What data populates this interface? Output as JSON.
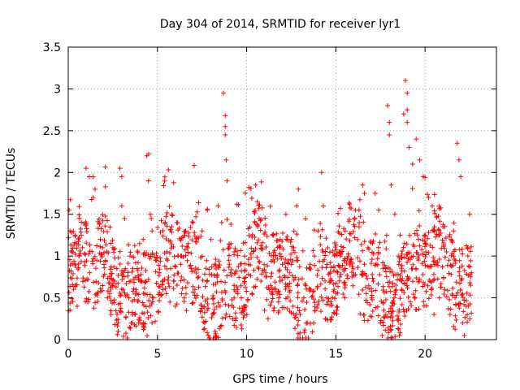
{
  "chart_data": {
    "type": "scatter",
    "title": "Day 304 of 2014, SRMTID for receiver lyr1",
    "xlabel": "GPS time / hours",
    "ylabel": "SRMTID / TECUs",
    "xlim": [
      0,
      24
    ],
    "ylim": [
      0,
      3.5
    ],
    "xticks": [
      "0",
      "5",
      "10",
      "15",
      "20"
    ],
    "yticks": [
      "0",
      "0.5",
      "1",
      "1.5",
      "2",
      "2.5",
      "3",
      "3.5"
    ],
    "grid": true,
    "marker": "+",
    "series_color": "#ff0000",
    "series": [
      {
        "name": "lyr1",
        "points": [
          [
            0.05,
            1.55
          ],
          [
            0.1,
            1.3
          ],
          [
            0.2,
            1.05
          ],
          [
            0.3,
            0.6
          ],
          [
            0.5,
            0.4
          ],
          [
            0.6,
            1.0
          ],
          [
            0.8,
            1.1
          ],
          [
            1.0,
            2.05
          ],
          [
            1.1,
            0.45
          ],
          [
            1.2,
            0.8
          ],
          [
            1.4,
            1.7
          ],
          [
            1.5,
            1.8
          ],
          [
            1.6,
            0.95
          ],
          [
            1.8,
            1.2
          ],
          [
            2.0,
            0.9
          ],
          [
            2.2,
            0.5
          ],
          [
            2.4,
            0.3
          ],
          [
            2.6,
            0.7
          ],
          [
            2.9,
            2.05
          ],
          [
            3.0,
            1.95
          ],
          [
            3.0,
            1.6
          ],
          [
            3.2,
            0.85
          ],
          [
            3.4,
            0.5
          ],
          [
            3.6,
            0.3
          ],
          [
            3.8,
            0.6
          ],
          [
            4.0,
            1.15
          ],
          [
            4.2,
            1.2
          ],
          [
            4.4,
            2.2
          ],
          [
            4.5,
            2.22
          ],
          [
            4.5,
            1.9
          ],
          [
            4.6,
            1.5
          ],
          [
            4.7,
            1.3
          ],
          [
            4.9,
            0.95
          ],
          [
            5.1,
            0.8
          ],
          [
            5.3,
            0.6
          ],
          [
            5.5,
            0.55
          ],
          [
            5.7,
            0.45
          ],
          [
            5.9,
            0.7
          ],
          [
            6.1,
            0.65
          ],
          [
            6.3,
            0.9
          ],
          [
            6.5,
            0.5
          ],
          [
            6.7,
            1.1
          ],
          [
            6.9,
            0.85
          ],
          [
            7.1,
            0.6
          ],
          [
            7.3,
            0.75
          ],
          [
            7.5,
            1.3
          ],
          [
            7.6,
            0.12
          ],
          [
            7.8,
            1.55
          ],
          [
            8.0,
            1.2
          ],
          [
            8.2,
            0.9
          ],
          [
            8.4,
            1.6
          ],
          [
            8.6,
            1.4
          ],
          [
            8.7,
            2.95
          ],
          [
            8.8,
            2.68
          ],
          [
            8.8,
            2.55
          ],
          [
            8.8,
            2.45
          ],
          [
            8.85,
            2.15
          ],
          [
            8.9,
            1.9
          ],
          [
            9.1,
            0.8
          ],
          [
            9.3,
            1.05
          ],
          [
            9.5,
            0.6
          ],
          [
            9.7,
            0.5
          ],
          [
            9.9,
            0.4
          ],
          [
            10.1,
            0.9
          ],
          [
            10.3,
            0.55
          ],
          [
            10.5,
            1.85
          ],
          [
            10.6,
            1.65
          ],
          [
            10.7,
            1.45
          ],
          [
            10.8,
            0.7
          ],
          [
            11.0,
            0.35
          ],
          [
            11.2,
            0.25
          ],
          [
            11.4,
            0.45
          ],
          [
            11.6,
            0.6
          ],
          [
            11.8,
            0.5
          ],
          [
            12.0,
            0.9
          ],
          [
            12.2,
            1.5
          ],
          [
            12.4,
            0.8
          ],
          [
            12.6,
            0.4
          ],
          [
            12.8,
            1.6
          ],
          [
            12.9,
            1.8
          ],
          [
            13.0,
            0.3
          ],
          [
            13.2,
            0.5
          ],
          [
            13.4,
            0.2
          ],
          [
            13.6,
            0.6
          ],
          [
            13.8,
            1.0
          ],
          [
            14.0,
            1.3
          ],
          [
            14.2,
            2.0
          ],
          [
            14.3,
            1.6
          ],
          [
            14.5,
            0.9
          ],
          [
            14.7,
            0.7
          ],
          [
            14.9,
            0.6
          ],
          [
            15.1,
            0.8
          ],
          [
            15.3,
            1.05
          ],
          [
            15.5,
            0.5
          ],
          [
            15.7,
            1.0
          ],
          [
            15.9,
            0.75
          ],
          [
            16.1,
            1.55
          ],
          [
            16.3,
            1.35
          ],
          [
            16.5,
            1.85
          ],
          [
            16.6,
            1.75
          ],
          [
            16.8,
            1.1
          ],
          [
            17.0,
            0.5
          ],
          [
            17.2,
            1.75
          ],
          [
            17.4,
            1.55
          ],
          [
            17.5,
            0.2
          ],
          [
            17.6,
            0.05
          ],
          [
            17.8,
            0.3
          ],
          [
            17.9,
            2.8
          ],
          [
            18.0,
            2.6
          ],
          [
            18.0,
            2.45
          ],
          [
            18.1,
            1.85
          ],
          [
            18.3,
            1.5
          ],
          [
            18.5,
            1.0
          ],
          [
            18.7,
            0.6
          ],
          [
            18.8,
            2.7
          ],
          [
            18.9,
            3.1
          ],
          [
            19.0,
            2.95
          ],
          [
            19.0,
            2.75
          ],
          [
            19.0,
            2.6
          ],
          [
            19.1,
            2.3
          ],
          [
            19.3,
            2.1
          ],
          [
            19.5,
            2.4
          ],
          [
            19.7,
            2.15
          ],
          [
            19.9,
            1.95
          ],
          [
            20.0,
            1.25
          ],
          [
            20.2,
            1.7
          ],
          [
            20.4,
            1.6
          ],
          [
            20.6,
            0.9
          ],
          [
            20.8,
            0.5
          ],
          [
            21.0,
            1.35
          ],
          [
            21.2,
            1.05
          ],
          [
            21.4,
            0.3
          ],
          [
            21.6,
            1.3
          ],
          [
            21.8,
            2.35
          ],
          [
            21.9,
            2.15
          ],
          [
            22.0,
            1.95
          ],
          [
            22.1,
            0.2
          ],
          [
            22.2,
            0.05
          ],
          [
            22.3,
            0.4
          ],
          [
            22.4,
            1.0
          ],
          [
            22.5,
            1.5
          ],
          [
            22.55,
            0.65
          ],
          [
            22.6,
            0.8
          ],
          [
            0.4,
            0.9
          ],
          [
            2.5,
            1.1
          ],
          [
            3.5,
            0.7
          ],
          [
            6.0,
            0.4
          ],
          [
            9.0,
            0.95
          ],
          [
            11.1,
            0.75
          ],
          [
            13.5,
            0.85
          ],
          [
            15.5,
            0.95
          ],
          [
            17.1,
            0.7
          ],
          [
            19.5,
            0.85
          ],
          [
            21.1,
            0.6
          ],
          [
            20.5,
            0.3
          ],
          [
            5.8,
            1.35
          ],
          [
            7.0,
            1.4
          ],
          [
            12.5,
            1.2
          ],
          [
            16.7,
            0.55
          ],
          [
            18.6,
            1.25
          ]
        ]
      }
    ]
  }
}
